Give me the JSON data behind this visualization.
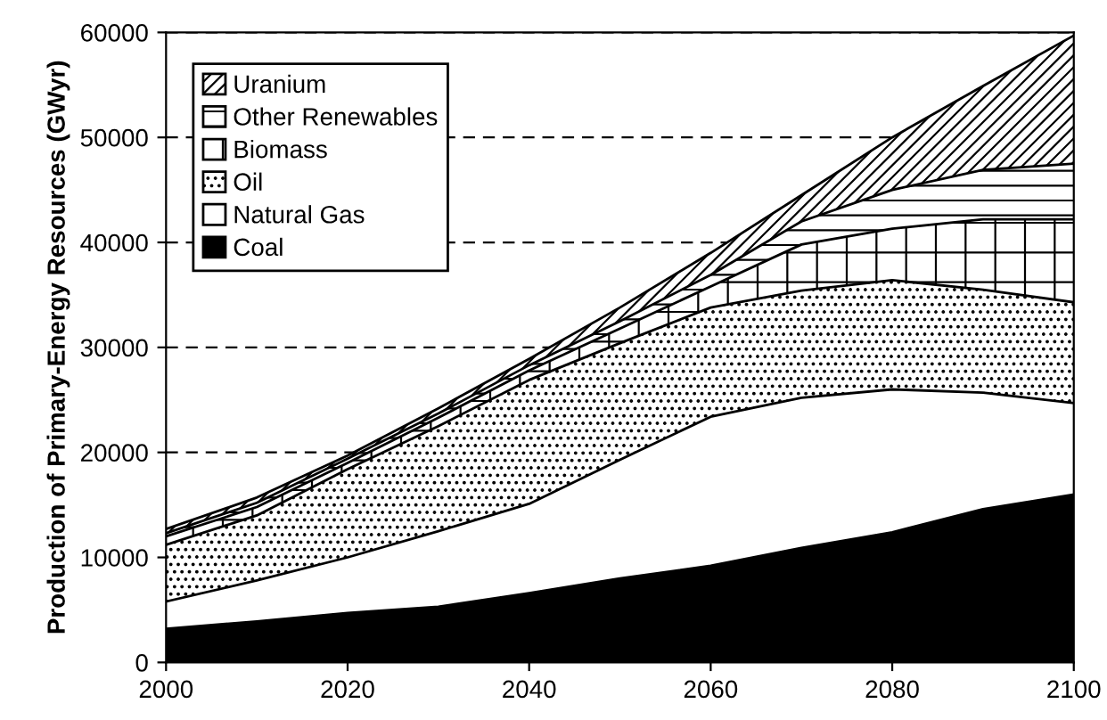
{
  "chart_data": {
    "type": "area",
    "stacked": true,
    "ylabel": "Production of Primary-Energy Resources (GWyr)",
    "x": [
      2000,
      2010,
      2020,
      2030,
      2040,
      2050,
      2060,
      2070,
      2080,
      2090,
      2100
    ],
    "series": [
      {
        "name": "Coal",
        "color": "#000000",
        "values": [
          3200,
          3900,
          4700,
          5300,
          6600,
          8000,
          9200,
          10900,
          12400,
          14600,
          16000
        ]
      },
      {
        "name": "Natural Gas",
        "color": "#ffffff",
        "values": [
          2600,
          3900,
          5300,
          7200,
          8500,
          11300,
          14200,
          14300,
          13600,
          11100,
          8700
        ]
      },
      {
        "name": "Oil",
        "color": "#ffffff",
        "values": [
          5400,
          6200,
          8400,
          10000,
          11800,
          11100,
          10400,
          10200,
          10400,
          9800,
          9600
        ]
      },
      {
        "name": "Biomass",
        "color": "#ffffff",
        "values": [
          800,
          800,
          600,
          800,
          900,
          1400,
          2000,
          4400,
          4900,
          6700,
          7900
        ]
      },
      {
        "name": "Other Renewables",
        "color": "#ffffff",
        "values": [
          300,
          400,
          400,
          400,
          500,
          700,
          1100,
          2200,
          3700,
          4700,
          5300
        ]
      },
      {
        "name": "Uranium",
        "color": "#ffffff",
        "values": [
          400,
          500,
          300,
          500,
          600,
          1300,
          2100,
          2500,
          5000,
          8000,
          12200
        ]
      }
    ],
    "xlim": [
      2000,
      2100
    ],
    "xticks": [
      2000,
      2020,
      2040,
      2060,
      2080,
      2100
    ],
    "ylim": [
      0,
      60000
    ],
    "yticks": [
      0,
      10000,
      20000,
      30000,
      40000,
      50000,
      60000
    ],
    "grid": "y",
    "legend": "top left"
  }
}
